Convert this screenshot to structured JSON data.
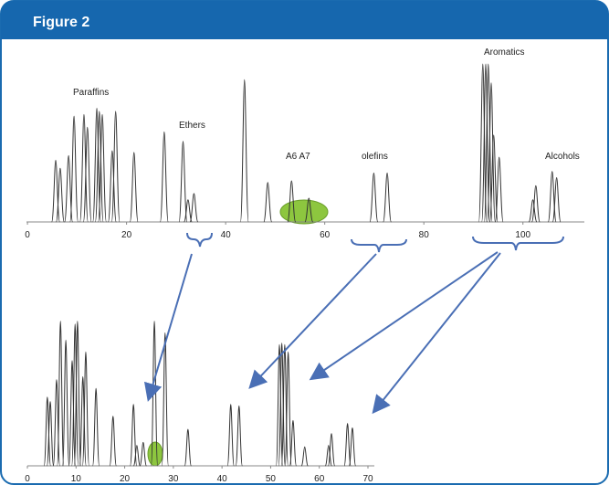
{
  "header": {
    "title": "Figure 2"
  },
  "chart_data": [
    {
      "type": "peaks",
      "color": "#333333",
      "xlim": [
        -0.2,
        110
      ],
      "xticks": [
        0,
        20,
        40,
        60,
        80,
        100
      ],
      "ylim": [
        0,
        100
      ],
      "annotations": [
        "Paraffins",
        "Ethers",
        "A6 A7",
        "olefins",
        "Aromatics",
        "Alcohols"
      ],
      "x": [
        5.7,
        6.6,
        8.3,
        9.4,
        11.4,
        12.1,
        14.0,
        14.5,
        15.1,
        17.1,
        17.8,
        21.5,
        27.6,
        31.4,
        32.4,
        33.6,
        43.8,
        48.5,
        53.3,
        56.8,
        69.9,
        72.6,
        91.9,
        92.5,
        93.0,
        93.6,
        94.1,
        95.2,
        102.0,
        102.6,
        105.9,
        106.8
      ],
      "values": [
        39,
        34,
        42,
        67,
        68,
        60,
        72,
        70,
        68,
        45,
        70,
        44,
        57,
        51,
        14,
        18,
        90,
        25,
        26,
        15,
        31,
        31,
        100,
        100,
        100,
        88,
        55,
        41,
        14,
        23,
        32,
        28
      ]
    },
    {
      "type": "peaks",
      "color": "#333333",
      "xlim": [
        0,
        70
      ],
      "xticks": [
        0,
        10,
        20,
        30,
        40,
        50,
        60,
        70
      ],
      "ylim": [
        0,
        100
      ],
      "x": [
        4.1,
        4.7,
        6.0,
        6.8,
        7.9,
        9.2,
        9.8,
        10.3,
        11.4,
        12.0,
        14.1,
        17.6,
        21.8,
        22.5,
        23.8,
        26.1,
        28.3,
        33.0,
        41.8,
        43.5,
        51.8,
        52.3,
        52.9,
        53.6,
        54.6,
        57.0,
        61.9,
        62.5,
        65.8,
        66.8
      ],
      "values": [
        47,
        44,
        59,
        99,
        86,
        72,
        97,
        99,
        61,
        78,
        53,
        34,
        42,
        14,
        16,
        99,
        91,
        25,
        42,
        41,
        83,
        84,
        83,
        78,
        31,
        13,
        14,
        22,
        29,
        26
      ]
    }
  ]
}
